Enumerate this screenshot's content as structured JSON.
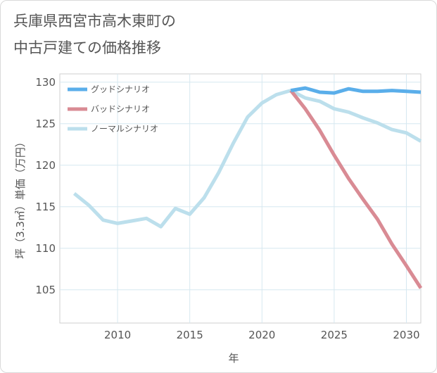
{
  "title_lines": [
    "兵庫県西宮市高木東町の",
    "中古戸建ての価格推移"
  ],
  "chart_data": {
    "type": "line",
    "title": "兵庫県西宮市高木東町の中古戸建ての価格推移",
    "xlabel": "年",
    "ylabel": "坪（3.3㎡）単価（万円）",
    "xlim": [
      2006,
      2031
    ],
    "ylim": [
      101,
      131
    ],
    "x_ticks": [
      2010,
      2015,
      2020,
      2025,
      2030
    ],
    "y_ticks": [
      105,
      110,
      115,
      120,
      125,
      130
    ],
    "grid": true,
    "legend_position": "top-left",
    "series": [
      {
        "name": "グッドシナリオ",
        "color": "#5aaeea",
        "x": [
          2022,
          2023,
          2024,
          2025,
          2026,
          2027,
          2028,
          2029,
          2030,
          2031
        ],
        "values": [
          129.0,
          129.3,
          128.8,
          128.7,
          129.2,
          128.9,
          128.9,
          129.0,
          128.9,
          128.8
        ]
      },
      {
        "name": "バッドシナリオ",
        "color": "#d98b94",
        "x": [
          2022,
          2023,
          2024,
          2025,
          2026,
          2027,
          2028,
          2029,
          2030,
          2031
        ],
        "values": [
          129.0,
          126.8,
          124.2,
          121.2,
          118.4,
          115.9,
          113.5,
          110.5,
          107.9,
          105.2
        ]
      },
      {
        "name": "ノーマルシナリオ",
        "color": "#bcdfec",
        "x": [
          2007,
          2008,
          2009,
          2010,
          2011,
          2012,
          2013,
          2014,
          2015,
          2016,
          2017,
          2018,
          2019,
          2020,
          2021,
          2022,
          2023,
          2024,
          2025,
          2026,
          2027,
          2028,
          2029,
          2030,
          2031
        ],
        "values": [
          116.6,
          115.2,
          113.4,
          113.0,
          113.3,
          113.6,
          112.6,
          114.8,
          114.1,
          116.1,
          119.1,
          122.6,
          125.8,
          127.5,
          128.5,
          129.0,
          128.1,
          127.7,
          126.8,
          126.4,
          125.7,
          125.1,
          124.3,
          123.9,
          122.9
        ]
      }
    ]
  }
}
